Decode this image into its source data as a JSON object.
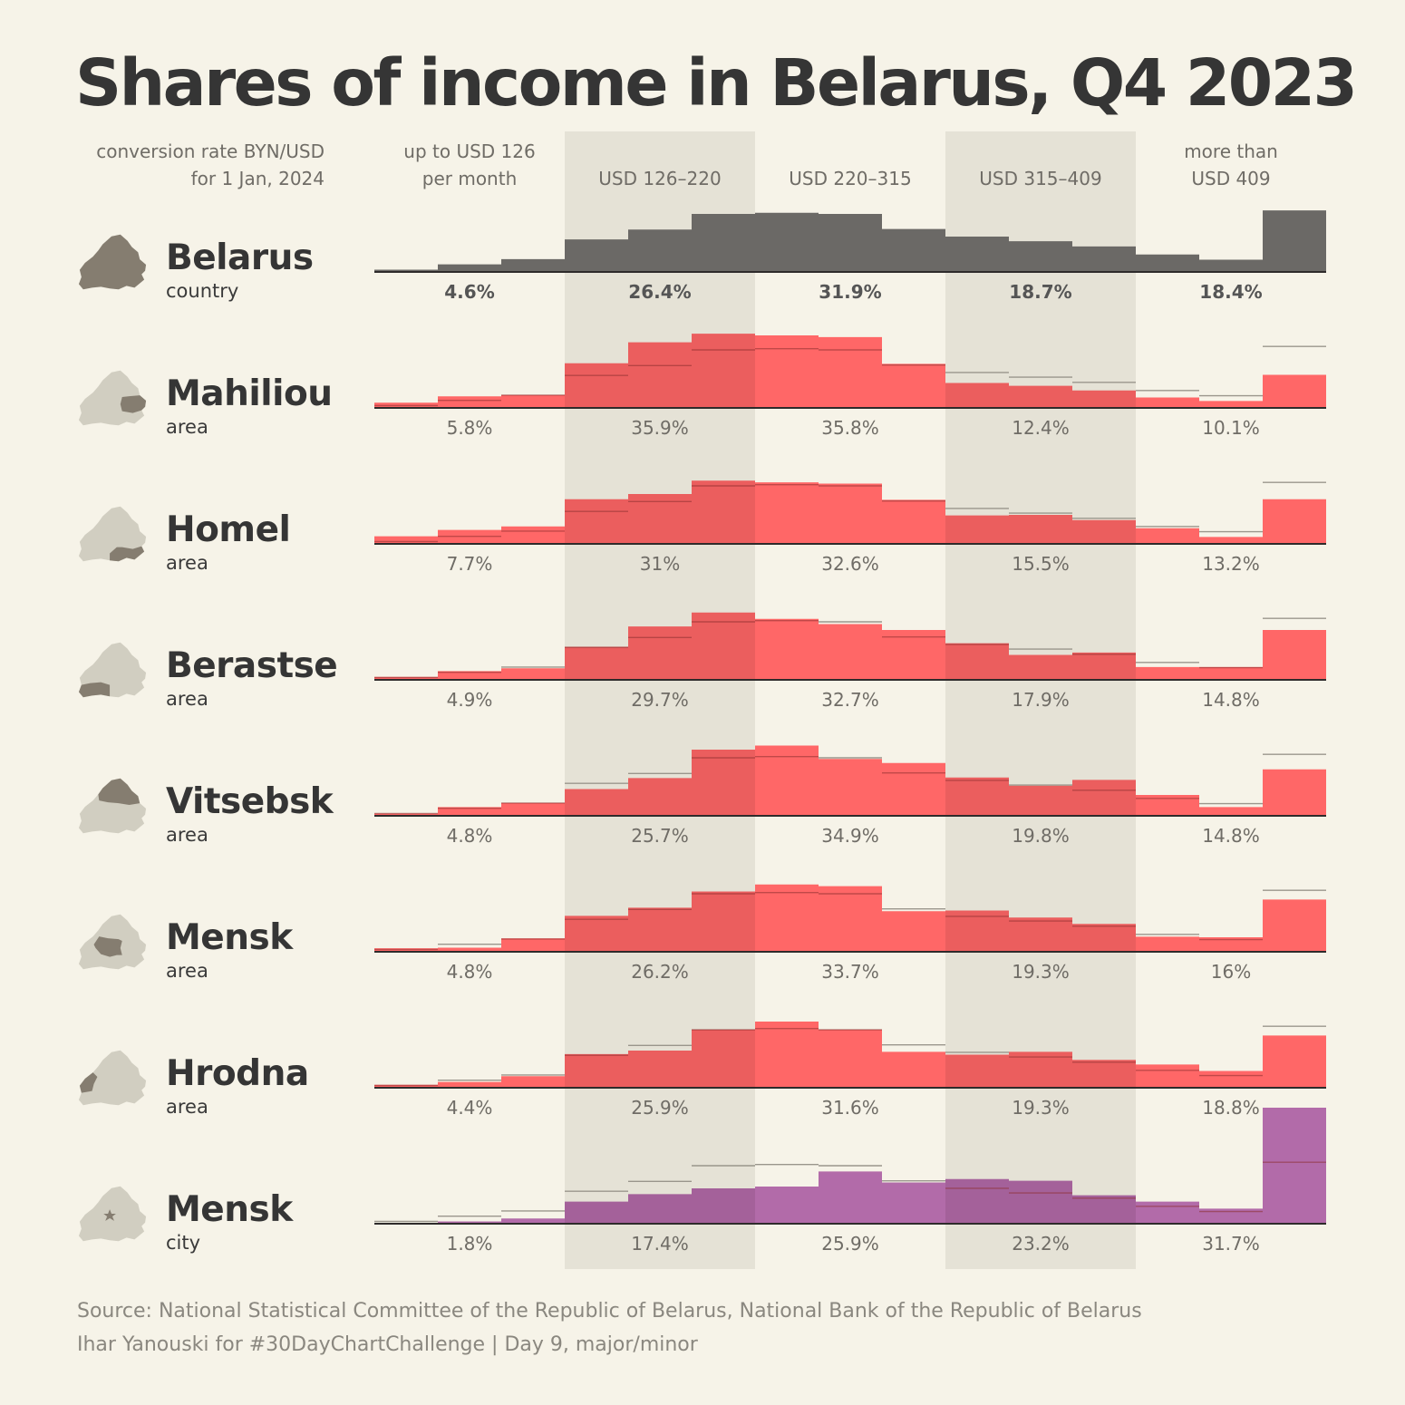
{
  "title": "Shares of income in Belarus, Q4 2023",
  "header": {
    "conversion_note": "conversion rate BYN/USD\nfor 1 Jan, 2024",
    "bands": [
      "up to USD 126\nper month",
      "USD 126–220",
      "USD 220–315",
      "USD 315–409",
      "more than\nUSD 409"
    ]
  },
  "footer": {
    "source": "Source: National Statistical Committee of the Republic of Belarus, National Bank of the Republic of Belarus",
    "credit": "Ihar Yanouski for #30DayChartChallenge | Day 9, major/minor"
  },
  "colors": {
    "background": "#f6f3e8",
    "band_shade": "#e5e2d6",
    "country": "#6b6966",
    "area": "#ff6262",
    "city": "#b066a6",
    "reference_line": "#9a968c",
    "map_active": "#857d70",
    "map_inactive": "#d1cec1"
  },
  "chart_data": {
    "type": "area",
    "x": [
      "bin 1",
      "bin 2",
      "bin 3",
      "bin 4",
      "bin 5",
      "bin 6",
      "bin 7",
      "bin 8",
      "bin 9",
      "bin 10",
      "bin 11",
      "bin 12",
      "bin 13",
      "bin 14",
      "bin 15"
    ],
    "bands": [
      "up to USD 126\nper month",
      "USD 126–220",
      "USD 220–315",
      "USD 315–409",
      "more than\nUSD 409"
    ],
    "reference_series": "Belarus",
    "series": [
      {
        "name": "Belarus",
        "subtitle": "country",
        "highlight": "all",
        "color_key": "country",
        "values": [
          0.4,
          1.3,
          2.2,
          5.6,
          7.3,
          10.0,
          10.2,
          10.0,
          7.4,
          6.1,
          5.3,
          4.4,
          3.0,
          2.1,
          10.6
        ],
        "band_shares": [
          "4.6%",
          "26.4%",
          "31.9%",
          "18.7%",
          "18.4%"
        ]
      },
      {
        "name": "Mahiliou",
        "subtitle": "area",
        "highlight": "east",
        "color_key": "area",
        "values": [
          0.9,
          2.0,
          2.2,
          7.7,
          11.3,
          12.8,
          12.5,
          12.2,
          7.6,
          4.3,
          3.8,
          3.0,
          1.8,
          1.2,
          5.7
        ],
        "band_shares": [
          "5.8%",
          "35.9%",
          "35.8%",
          "12.4%",
          "10.1%"
        ]
      },
      {
        "name": "Homel",
        "subtitle": "area",
        "highlight": "south-east",
        "color_key": "area",
        "values": [
          1.3,
          2.4,
          3.0,
          7.7,
          8.6,
          10.9,
          10.6,
          10.4,
          7.6,
          4.9,
          5.0,
          4.1,
          2.7,
          1.2,
          7.7
        ],
        "band_shares": [
          "7.7%",
          "31%",
          "32.6%",
          "15.5%",
          "13.2%"
        ]
      },
      {
        "name": "Berastse",
        "subtitle": "area",
        "highlight": "south-west",
        "color_key": "area",
        "values": [
          0.5,
          1.5,
          2.0,
          5.7,
          9.2,
          11.6,
          10.5,
          9.6,
          8.6,
          6.3,
          4.3,
          4.7,
          2.2,
          2.2,
          8.6
        ],
        "band_shares": [
          "4.9%",
          "29.7%",
          "32.7%",
          "17.9%",
          "14.8%"
        ]
      },
      {
        "name": "Vitsebsk",
        "subtitle": "area",
        "highlight": "north",
        "color_key": "area",
        "values": [
          0.4,
          1.5,
          2.2,
          4.6,
          6.5,
          11.4,
          12.1,
          9.8,
          9.1,
          6.6,
          5.2,
          6.2,
          3.6,
          1.5,
          8.0
        ],
        "band_shares": [
          "4.8%",
          "25.7%",
          "34.9%",
          "19.8%",
          "14.8%"
        ]
      },
      {
        "name": "Mensk",
        "subtitle": "area",
        "highlight": "center",
        "color_key": "area",
        "values": [
          0.6,
          0.7,
          2.3,
          6.2,
          7.6,
          10.4,
          11.6,
          11.3,
          7.0,
          7.1,
          5.9,
          4.8,
          2.6,
          2.5,
          9.0
        ],
        "band_shares": [
          "4.8%",
          "26.2%",
          "33.7%",
          "19.3%",
          "16%"
        ]
      },
      {
        "name": "Hrodna",
        "subtitle": "area",
        "highlight": "west",
        "color_key": "area",
        "values": [
          0.5,
          1.0,
          2.0,
          5.8,
          6.4,
          10.0,
          11.4,
          10.0,
          6.2,
          5.7,
          6.2,
          4.8,
          4.0,
          2.9,
          9.0
        ],
        "band_shares": [
          "4.4%",
          "25.9%",
          "31.6%",
          "19.3%",
          "18.8%"
        ]
      },
      {
        "name": "Mensk",
        "subtitle": "city",
        "highlight": "star",
        "color_key": "city",
        "values": [
          0.1,
          0.4,
          0.9,
          3.8,
          5.1,
          6.1,
          6.4,
          9.0,
          7.1,
          7.7,
          7.4,
          4.9,
          3.8,
          2.6,
          20.0
        ],
        "band_shares": [
          "1.8%",
          "17.4%",
          "25.9%",
          "23.2%",
          "31.7%"
        ]
      }
    ]
  }
}
